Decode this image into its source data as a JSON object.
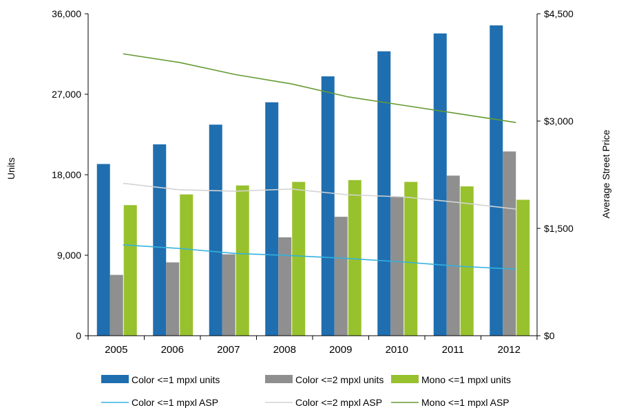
{
  "chart_data": {
    "type": "bar",
    "categories": [
      "2005",
      "2006",
      "2007",
      "2008",
      "2009",
      "2010",
      "2011",
      "2012"
    ],
    "ylabel": "Units",
    "y2label": "Average Street Price",
    "ylim": [
      0,
      36000
    ],
    "y2lim": [
      0,
      4500
    ],
    "y_ticks": [
      "0",
      "9,000",
      "18,000",
      "27,000",
      "36,000"
    ],
    "y2_ticks": [
      "$0",
      "$1,500",
      "$3,000",
      "$4,500"
    ],
    "grid": false,
    "legend_position": "bottom",
    "bar_series": [
      {
        "name": "Color <=1 mpxl units",
        "color": "#1f6eb0",
        "values": [
          19200,
          21400,
          23600,
          26100,
          29000,
          31800,
          33800,
          34700
        ]
      },
      {
        "name": "Color <=2 mpxl units",
        "color": "#8f8f8f",
        "values": [
          6800,
          8200,
          9100,
          11000,
          13300,
          15500,
          17900,
          20600
        ]
      },
      {
        "name": "Mono <=1 mpxl units",
        "color": "#98c12e",
        "values": [
          14600,
          15800,
          16800,
          17200,
          17400,
          17200,
          16700,
          15200
        ]
      }
    ],
    "line_series": [
      {
        "name": "Color <=1 mpxl ASP",
        "color": "#33b2de",
        "axis": "right",
        "values": [
          1270,
          1220,
          1150,
          1120,
          1080,
          1030,
          970,
          930
        ]
      },
      {
        "name": "Color <=2 mpxl ASP",
        "color": "#d3d3d3",
        "axis": "right",
        "values": [
          2130,
          2040,
          2020,
          2050,
          1970,
          1940,
          1860,
          1770
        ]
      },
      {
        "name": "Mono <=1 mpxl ASP",
        "color": "#649a32",
        "axis": "right",
        "values": [
          3940,
          3820,
          3650,
          3520,
          3340,
          3220,
          3100,
          2980
        ]
      }
    ]
  }
}
